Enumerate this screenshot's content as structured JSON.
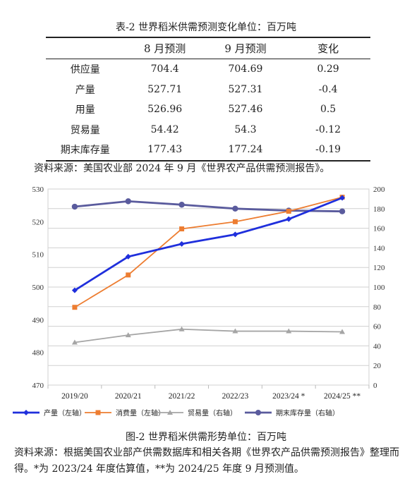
{
  "table": {
    "title": "表-2 世界稻米供需预测变化单位：百万吨",
    "headers": [
      "",
      "8 月预测",
      "9 月预测",
      "变化"
    ],
    "rows": [
      [
        "供应量",
        "704.4",
        "704.69",
        "0.29"
      ],
      [
        "产量",
        "527.71",
        "527.31",
        "-0.4"
      ],
      [
        "用量",
        "526.96",
        "527.46",
        "0.5"
      ],
      [
        "贸易量",
        "54.42",
        "54.3",
        "-0.12"
      ],
      [
        "期末库存量",
        "177.43",
        "177.24",
        "-0.19"
      ]
    ],
    "source": "资料来源：美国农业部 2024 年 9 月《世界农产品供需预测报告》。"
  },
  "chart_data": {
    "type": "line",
    "categories": [
      "2019/20",
      "2020/21",
      "2021/22",
      "2022/23",
      "2023/24 *",
      "2024/25 **"
    ],
    "left_axis": {
      "min": 470,
      "max": 530,
      "step": 10,
      "ticks": [
        "470",
        "480",
        "490",
        "500",
        "510",
        "520",
        "530"
      ]
    },
    "right_axis": {
      "min": 0,
      "max": 200,
      "step": 20,
      "ticks": [
        "0",
        "20",
        "40",
        "60",
        "80",
        "100",
        "120",
        "140",
        "160",
        "180",
        "200"
      ]
    },
    "grid": true,
    "legend_position": "bottom",
    "series": [
      {
        "name": "产量（左轴）",
        "axis": "left",
        "color": "#1f2fdc",
        "marker": "diamond",
        "values": [
          499,
          509.3,
          513.2,
          516.1,
          520.8,
          527.3
        ]
      },
      {
        "name": "消费量（左轴）",
        "axis": "left",
        "color": "#ed7d31",
        "marker": "square",
        "values": [
          493.8,
          503.7,
          517.8,
          520,
          523.2,
          527.5
        ]
      },
      {
        "name": "贸易量（右轴）",
        "axis": "right",
        "color": "#a5a5a5",
        "marker": "triangle",
        "values": [
          43.5,
          51,
          57,
          55,
          55,
          54.3
        ]
      },
      {
        "name": "期末库存量（右轴）",
        "axis": "right",
        "color": "#5a5b9d",
        "marker": "circle",
        "values": [
          182,
          187.5,
          184,
          180,
          178,
          177.2
        ]
      }
    ],
    "caption": "图-2 世界稻米供需形势单位：百万吨",
    "source": "资料来源：根据美国农业部产供需数据库和相关各期《世界农产品供需预测报告》整理而得。*为 2023/24 年度估算值，**为 2024/25 年度 9 月预测值。"
  }
}
